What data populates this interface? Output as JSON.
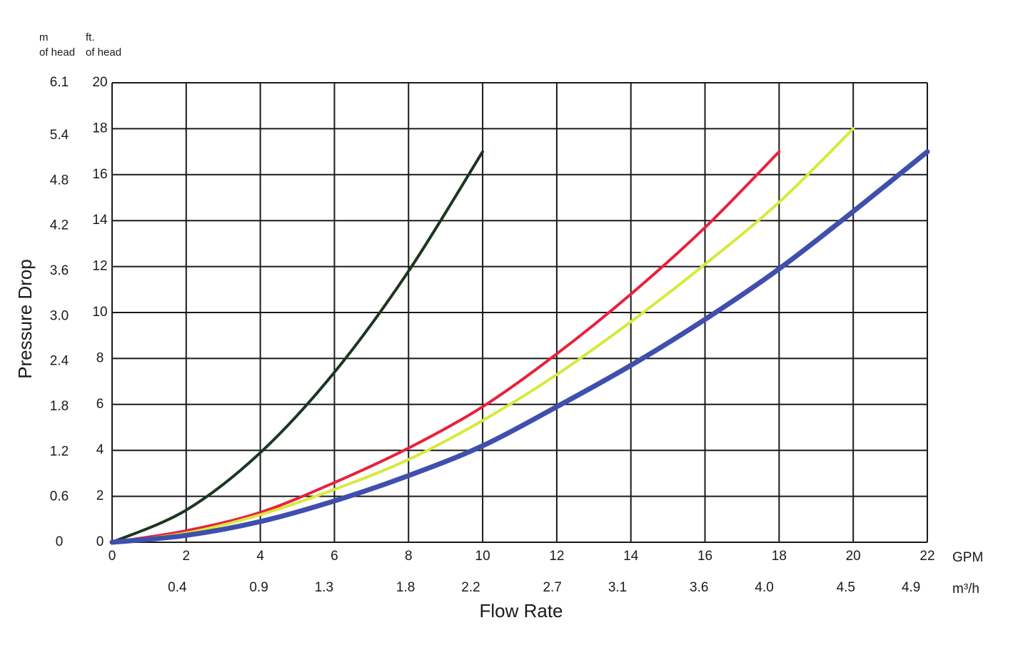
{
  "chart_data": {
    "type": "line",
    "x_label": "Flow Rate",
    "y_label": "Pressure Drop",
    "x_unit": "GPM",
    "x2_unit": "m³/h",
    "y_unit": [
      "ft.",
      "of head"
    ],
    "y2_unit": [
      "m",
      "of head"
    ],
    "x": [
      0,
      2,
      4,
      6,
      8,
      10,
      12,
      14,
      16,
      18,
      20,
      22
    ],
    "series": [
      {
        "color": "#1c3620",
        "width": 4,
        "values": [
          0,
          1.4,
          3.9,
          7.4,
          11.8,
          17.0,
          null,
          null,
          null,
          null,
          null,
          null
        ]
      },
      {
        "color": "#e8213c",
        "width": 4,
        "values": [
          0,
          0.5,
          1.3,
          2.6,
          4.1,
          5.9,
          8.2,
          10.8,
          13.7,
          17.0,
          null,
          null
        ]
      },
      {
        "color": "#d6ea3c",
        "width": 4,
        "values": [
          0,
          0.4,
          1.2,
          2.3,
          3.6,
          5.3,
          7.3,
          9.6,
          12.1,
          14.8,
          18.0,
          null
        ]
      },
      {
        "color": "#3f4fae",
        "width": 7,
        "values": [
          0,
          0.3,
          0.9,
          1.8,
          2.9,
          4.2,
          5.9,
          7.7,
          9.7,
          11.9,
          14.4,
          17.0
        ]
      }
    ],
    "xlim": [
      0,
      22
    ],
    "xticks": [
      0,
      2,
      4,
      6,
      8,
      10,
      12,
      14,
      16,
      18,
      20,
      22
    ],
    "x2lim": [
      0,
      5
    ],
    "x2ticks": [
      0.4,
      0.9,
      1.3,
      1.8,
      2.2,
      2.7,
      3.1,
      3.6,
      {
        "value": 4,
        "label": "4.0"
      },
      4.5,
      4.9
    ],
    "ylim": [
      0,
      20
    ],
    "yticks": [
      0,
      2,
      4,
      6,
      8,
      10,
      12,
      14,
      16,
      18,
      20
    ],
    "y2lim": [
      0,
      6.1
    ],
    "y2ticks": [
      0,
      0.6,
      1.2,
      1.8,
      2.4,
      {
        "value": 3,
        "label": "3.0"
      },
      3.6,
      4.2,
      4.8,
      5.4,
      6.1
    ],
    "grid": true
  }
}
